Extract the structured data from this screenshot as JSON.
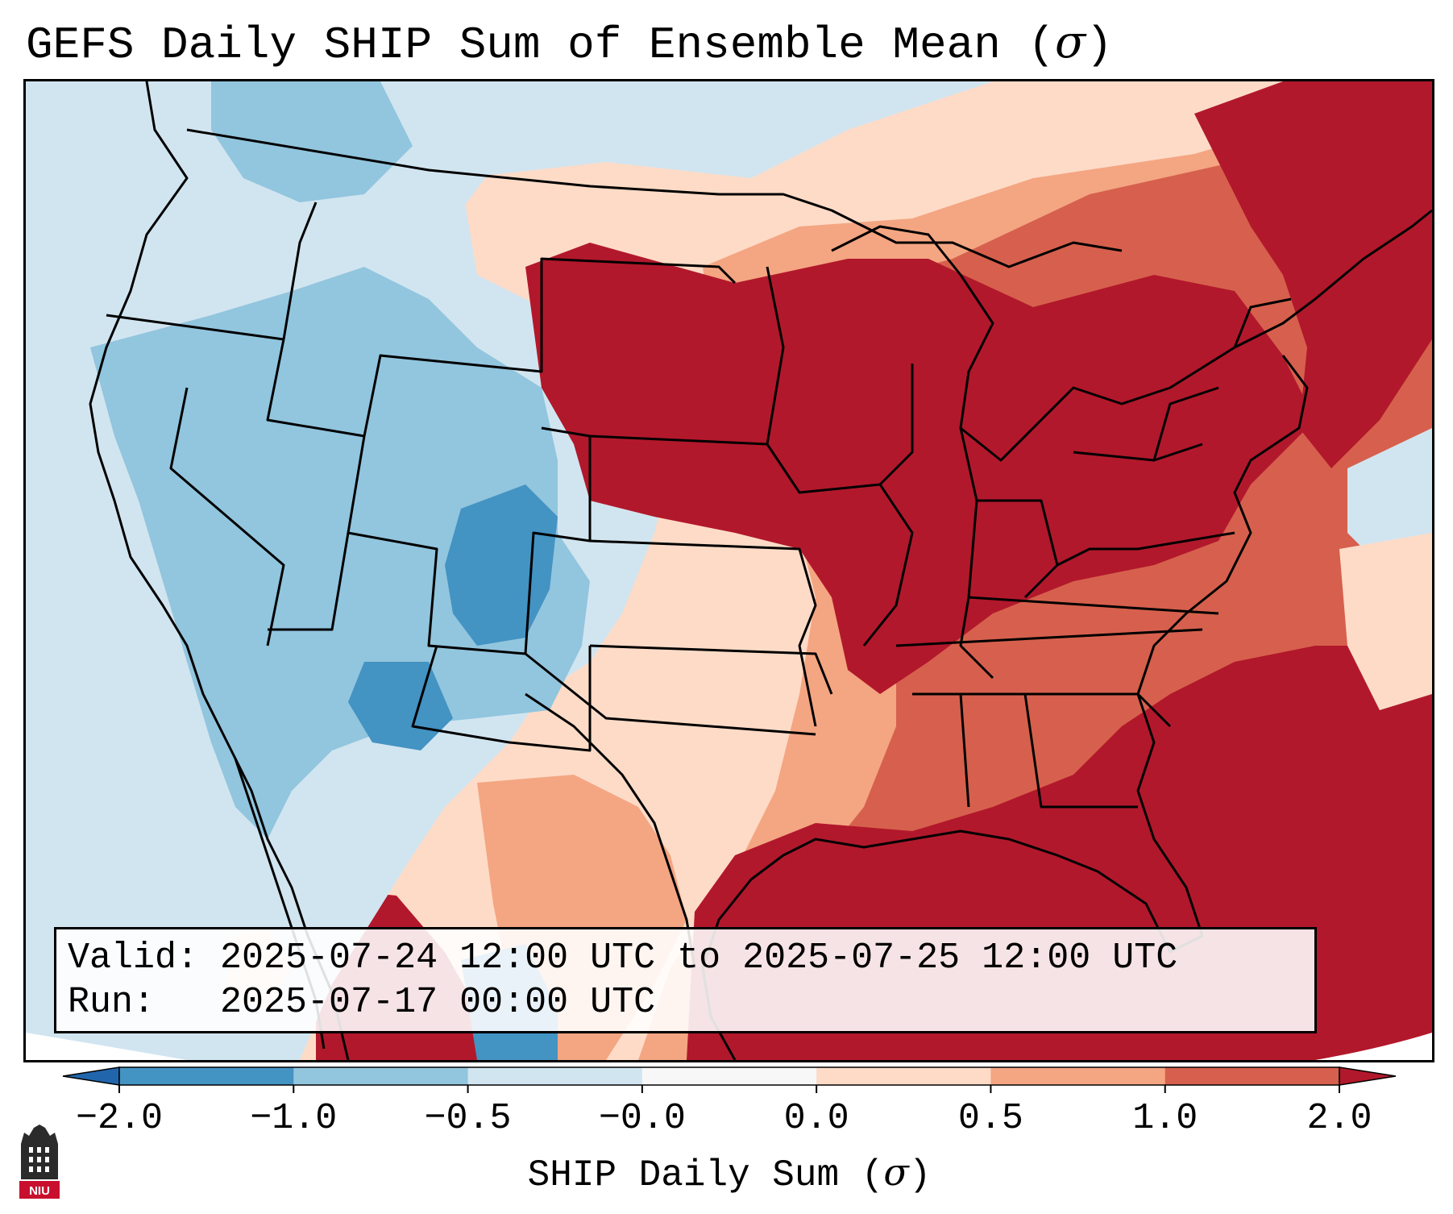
{
  "title": {
    "prefix": "GEFS Daily SHIP Sum of Ensemble Mean (",
    "sigma": "σ",
    "suffix": ")"
  },
  "info": {
    "valid_line": "Valid: 2025-07-24 12:00 UTC to 2025-07-25 12:00 UTC",
    "run_line": "Run:   2025-07-17 00:00 UTC"
  },
  "colorbar": {
    "label_prefix": "SHIP Daily Sum (",
    "label_sigma": "σ",
    "label_suffix": ")",
    "ticks": [
      "−2.0",
      "−1.0",
      "−0.5",
      "−0.0",
      "0.0",
      "0.5",
      "1.0",
      "2.0"
    ],
    "bins": [
      {
        "range": "< −2.0",
        "color": "#2166ac"
      },
      {
        "range": "−2.0 to −1.0",
        "color": "#4393c3"
      },
      {
        "range": "−1.0 to −0.5",
        "color": "#92c5de"
      },
      {
        "range": "−0.5 to −0.0",
        "color": "#d1e5f0"
      },
      {
        "range": "−0.0 to 0.0",
        "color": "#f7f7f7"
      },
      {
        "range": "0.0 to 0.5",
        "color": "#fddbc7"
      },
      {
        "range": "0.5 to 1.0",
        "color": "#f4a582"
      },
      {
        "range": "1.0 to 2.0",
        "color": "#d6604d"
      },
      {
        "range": "> 2.0",
        "color": "#b2182b"
      }
    ]
  },
  "logo": {
    "text": "NIU"
  },
  "map_colors": {
    "ocean_background": "#d1e5f0",
    "strong_negative": "#4393c3",
    "moderate_negative": "#92c5de",
    "weak_negative": "#d1e5f0",
    "weak_positive": "#fddbc7",
    "moderate_positive": "#f4a582",
    "strong_positive": "#d6604d",
    "very_strong_positive": "#b2182b"
  }
}
